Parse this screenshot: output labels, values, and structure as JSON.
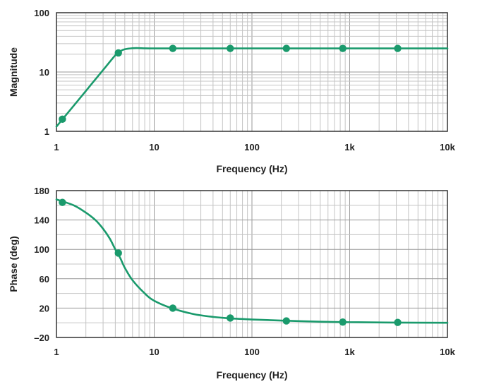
{
  "chart_data": [
    {
      "type": "line",
      "title": "",
      "xlabel": "Frequency (Hz)",
      "ylabel": "Magnitude",
      "x_scale": "log",
      "y_scale": "log",
      "xlim": [
        1,
        10000
      ],
      "ylim": [
        1,
        100
      ],
      "grid": true,
      "x_ticks": [
        {
          "value": 1,
          "label": "1"
        },
        {
          "value": 10,
          "label": "10"
        },
        {
          "value": 100,
          "label": "100"
        },
        {
          "value": 1000,
          "label": "1k"
        },
        {
          "value": 10000,
          "label": "10k"
        }
      ],
      "y_ticks": [
        {
          "value": 1,
          "label": "1"
        },
        {
          "value": 10,
          "label": "10"
        },
        {
          "value": 100,
          "label": "100"
        }
      ],
      "series": [
        {
          "color": "#1a9a6c",
          "curve": {
            "x": [
              1,
              1.5,
              2,
              3,
              4,
              4.5,
              5,
              6,
              7,
              8,
              10,
              15,
              30,
              60,
              200,
              1000,
              10000
            ],
            "y": [
              1.2,
              2.7,
              4.8,
              10.8,
              19.2,
              22.5,
              24.2,
              25.2,
              25.3,
              25.1,
              25,
              25,
              25,
              25,
              25,
              25,
              25
            ]
          },
          "markers": {
            "x": [
              1.15,
              4.3,
              15.5,
              60,
              225,
              850,
              3100
            ],
            "y": [
              1.6,
              21,
              25,
              25,
              25,
              25,
              25
            ]
          }
        }
      ]
    },
    {
      "type": "line",
      "title": "",
      "xlabel": "Frequency (Hz)",
      "ylabel": "Phase (deg)",
      "x_scale": "log",
      "y_scale": "linear",
      "xlim": [
        1,
        10000
      ],
      "ylim": [
        -20,
        180
      ],
      "grid": true,
      "x_ticks": [
        {
          "value": 1,
          "label": "1"
        },
        {
          "value": 10,
          "label": "10"
        },
        {
          "value": 100,
          "label": "100"
        },
        {
          "value": 1000,
          "label": "1k"
        },
        {
          "value": 10000,
          "label": "10k"
        }
      ],
      "y_ticks": [
        {
          "value": -20,
          "label": "–20"
        },
        {
          "value": 20,
          "label": "20"
        },
        {
          "value": 60,
          "label": "60"
        },
        {
          "value": 100,
          "label": "100"
        },
        {
          "value": 140,
          "label": "140"
        },
        {
          "value": 180,
          "label": "180"
        }
      ],
      "series": [
        {
          "color": "#1a9a6c",
          "curve": {
            "x": [
              1,
              1.5,
              2,
              2.5,
              3,
              3.5,
              4,
              4.5,
              5,
              6,
              8,
              10,
              15,
              25,
              40,
              60,
              100,
              200,
              500,
              1000,
              3000,
              10000
            ],
            "y": [
              168,
              160,
              150,
              140,
              128,
              115,
              100,
              88,
              75,
              58,
              40,
              30,
              20,
              12,
              8,
              6,
              4.5,
              3,
              1.5,
              0.8,
              0.3,
              0
            ]
          },
          "markers": {
            "x": [
              1.15,
              4.3,
              15.5,
              60,
              225,
              850,
              3100
            ],
            "y": [
              164,
              95,
              20,
              6.5,
              2.5,
              1,
              0.5
            ]
          }
        }
      ]
    }
  ]
}
